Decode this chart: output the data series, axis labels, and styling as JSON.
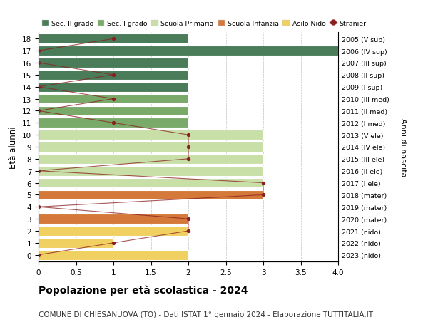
{
  "ages": [
    18,
    17,
    16,
    15,
    14,
    13,
    12,
    11,
    10,
    9,
    8,
    7,
    6,
    5,
    4,
    3,
    2,
    1,
    0
  ],
  "right_labels": [
    "2005 (V sup)",
    "2006 (IV sup)",
    "2007 (III sup)",
    "2008 (II sup)",
    "2009 (I sup)",
    "2010 (III med)",
    "2011 (II med)",
    "2012 (I med)",
    "2013 (V ele)",
    "2014 (IV ele)",
    "2015 (III ele)",
    "2016 (II ele)",
    "2017 (I ele)",
    "2018 (mater)",
    "2019 (mater)",
    "2020 (mater)",
    "2021 (nido)",
    "2022 (nido)",
    "2023 (nido)"
  ],
  "bar_values": [
    2,
    4,
    2,
    2,
    2,
    2,
    2,
    2,
    3,
    3,
    3,
    3,
    3,
    3,
    0,
    2,
    2,
    1,
    2
  ],
  "bar_colors": [
    "#4a7c59",
    "#4a7c59",
    "#4a7c59",
    "#4a7c59",
    "#4a7c59",
    "#7aaa6a",
    "#7aaa6a",
    "#7aaa6a",
    "#c8dfa8",
    "#c8dfa8",
    "#c8dfa8",
    "#c8dfa8",
    "#c8dfa8",
    "#d4793a",
    "#d4793a",
    "#d4793a",
    "#f0d060",
    "#f0d060",
    "#f0d060"
  ],
  "stranieri_x": [
    1,
    0,
    0,
    1,
    0,
    1,
    0,
    1,
    2,
    2,
    2,
    0,
    3,
    3,
    0,
    2,
    2,
    1,
    0
  ],
  "stranieri_color": "#8b2020",
  "legend_items": [
    {
      "label": "Sec. II grado",
      "color": "#4a7c59"
    },
    {
      "label": "Sec. I grado",
      "color": "#7aaa6a"
    },
    {
      "label": "Scuola Primaria",
      "color": "#c8dfa8"
    },
    {
      "label": "Scuola Infanzia",
      "color": "#d4793a"
    },
    {
      "label": "Asilo Nido",
      "color": "#f0d060"
    },
    {
      "label": "Stranieri",
      "color": "#8b2020"
    }
  ],
  "ylabel": "Età alunni",
  "right_ylabel": "Anni di nascita",
  "xlim": [
    0,
    4.0
  ],
  "ylim": [
    -0.55,
    18.55
  ],
  "title": "Popolazione per età scolastica - 2024",
  "subtitle": "COMUNE DI CHIESANUOVA (TO) - Dati ISTAT 1° gennaio 2024 - Elaborazione TUTTITALIA.IT",
  "title_fontsize": 10,
  "subtitle_fontsize": 7.5,
  "bar_height": 0.82
}
